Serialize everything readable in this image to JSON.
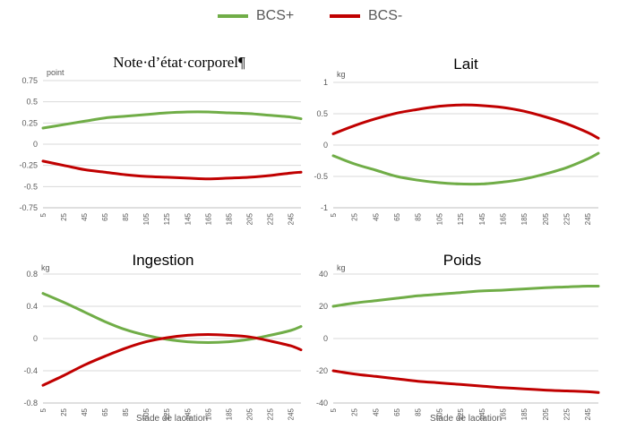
{
  "legend": {
    "items": [
      {
        "label": "BCS+",
        "color": "#70ad47"
      },
      {
        "label": "BCS-",
        "color": "#c00000"
      }
    ]
  },
  "chart_data": [
    {
      "type": "line",
      "title": "Note·d’état·corporel¶",
      "ylabel_unit": "point",
      "xlabel": "",
      "ylim": [
        -0.75,
        0.75
      ],
      "y_ticks": [
        "0.75",
        "0.5",
        "0.25",
        "0",
        "-0.25",
        "-0.5",
        "-0.75"
      ],
      "y_tick_values": [
        0.75,
        0.5,
        0.25,
        0,
        -0.25,
        -0.5,
        -0.75
      ],
      "x_ticks": [
        "5",
        "25",
        "45",
        "65",
        "85",
        "105",
        "125",
        "145",
        "165",
        "185",
        "205",
        "225",
        "245"
      ],
      "xlim": [
        5,
        255
      ],
      "x": [
        5,
        25,
        45,
        65,
        85,
        105,
        125,
        145,
        165,
        185,
        205,
        225,
        245,
        255
      ],
      "series": [
        {
          "name": "BCS+",
          "color": "#70ad47",
          "values": [
            0.19,
            0.23,
            0.27,
            0.31,
            0.33,
            0.35,
            0.37,
            0.38,
            0.38,
            0.37,
            0.36,
            0.34,
            0.32,
            0.3
          ]
        },
        {
          "name": "BCS-",
          "color": "#c00000",
          "values": [
            -0.2,
            -0.25,
            -0.3,
            -0.33,
            -0.36,
            -0.38,
            -0.39,
            -0.4,
            -0.41,
            -0.4,
            -0.39,
            -0.37,
            -0.34,
            -0.33
          ]
        }
      ]
    },
    {
      "type": "line",
      "title": "Lait",
      "ylabel_unit": "kg",
      "xlabel": "",
      "ylim": [
        -1,
        1
      ],
      "y_ticks": [
        "1",
        "0.5",
        "0",
        "-0.5",
        "-1"
      ],
      "y_tick_values": [
        1,
        0.5,
        0,
        -0.5,
        -1
      ],
      "x_ticks": [
        "5",
        "25",
        "45",
        "65",
        "85",
        "105",
        "125",
        "145",
        "165",
        "185",
        "205",
        "225",
        "245"
      ],
      "xlim": [
        5,
        255
      ],
      "x": [
        5,
        25,
        45,
        65,
        85,
        105,
        125,
        145,
        165,
        185,
        205,
        225,
        245,
        255
      ],
      "series": [
        {
          "name": "BCS+",
          "color": "#70ad47",
          "values": [
            -0.17,
            -0.3,
            -0.4,
            -0.5,
            -0.56,
            -0.6,
            -0.62,
            -0.62,
            -0.59,
            -0.54,
            -0.46,
            -0.36,
            -0.22,
            -0.13
          ]
        },
        {
          "name": "BCS-",
          "color": "#c00000",
          "values": [
            0.18,
            0.31,
            0.42,
            0.51,
            0.57,
            0.62,
            0.64,
            0.63,
            0.6,
            0.54,
            0.45,
            0.34,
            0.2,
            0.11
          ]
        }
      ]
    },
    {
      "type": "line",
      "title": "Ingestion",
      "ylabel_unit": "kg",
      "xlabel": "Stade de lactation",
      "ylim": [
        -0.8,
        0.8
      ],
      "y_ticks": [
        "0.8",
        "0.4",
        "0",
        "-0.4",
        "-0.8"
      ],
      "y_tick_values": [
        0.8,
        0.4,
        0,
        -0.4,
        -0.8
      ],
      "x_ticks": [
        "5",
        "25",
        "45",
        "65",
        "85",
        "105",
        "125",
        "145",
        "165",
        "185",
        "205",
        "225",
        "245"
      ],
      "xlim": [
        5,
        255
      ],
      "x": [
        5,
        25,
        45,
        65,
        85,
        105,
        125,
        145,
        165,
        185,
        205,
        225,
        245,
        255
      ],
      "series": [
        {
          "name": "BCS+",
          "color": "#70ad47",
          "values": [
            0.56,
            0.45,
            0.33,
            0.21,
            0.11,
            0.04,
            -0.01,
            -0.04,
            -0.05,
            -0.04,
            -0.01,
            0.04,
            0.1,
            0.15
          ]
        },
        {
          "name": "BCS-",
          "color": "#c00000",
          "values": [
            -0.58,
            -0.46,
            -0.33,
            -0.22,
            -0.12,
            -0.04,
            0.01,
            0.04,
            0.05,
            0.04,
            0.02,
            -0.03,
            -0.09,
            -0.14
          ]
        }
      ]
    },
    {
      "type": "line",
      "title": "Poids",
      "ylabel_unit": "kg",
      "xlabel": "Stade de lactation",
      "ylim": [
        -40,
        40
      ],
      "y_ticks": [
        "40",
        "20",
        "0",
        "-20",
        "-40"
      ],
      "y_tick_values": [
        40,
        20,
        0,
        -20,
        -40
      ],
      "x_ticks": [
        "5",
        "25",
        "45",
        "65",
        "85",
        "105",
        "125",
        "145",
        "165",
        "185",
        "205",
        "225",
        "245"
      ],
      "xlim": [
        5,
        255
      ],
      "x": [
        5,
        25,
        45,
        65,
        85,
        105,
        125,
        145,
        165,
        185,
        205,
        225,
        245,
        255
      ],
      "series": [
        {
          "name": "BCS+",
          "color": "#70ad47",
          "values": [
            20,
            22,
            23.5,
            25,
            26.5,
            27.5,
            28.5,
            29.5,
            30,
            30.8,
            31.5,
            32,
            32.5,
            32.5
          ]
        },
        {
          "name": "BCS-",
          "color": "#c00000",
          "values": [
            -20,
            -22,
            -23.5,
            -25,
            -26.5,
            -27.5,
            -28.5,
            -29.5,
            -30.5,
            -31.2,
            -32,
            -32.5,
            -33,
            -33.5
          ]
        }
      ]
    }
  ]
}
